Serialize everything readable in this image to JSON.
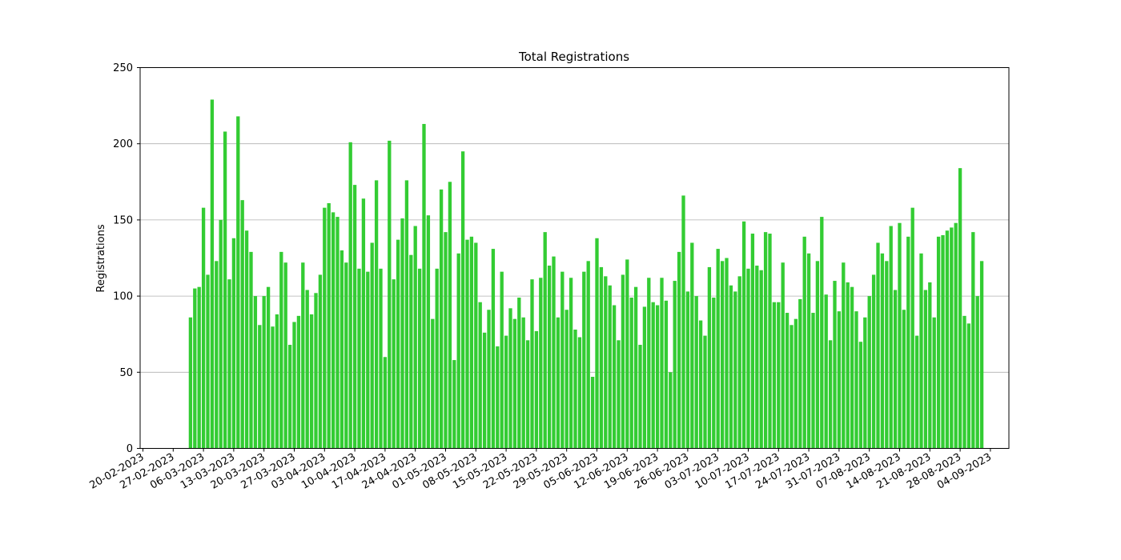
{
  "chart_data": {
    "type": "bar",
    "title": "Total Registrations",
    "xlabel": "",
    "ylabel": "Registrations",
    "ylim": [
      0,
      250
    ],
    "y_ticks": [
      0,
      50,
      100,
      150,
      200,
      250
    ],
    "grid": "y",
    "legend": "none",
    "bar_color": "#33cc33",
    "start_date": "2023-03-03",
    "x_ticks": [
      "20-02-2023",
      "27-02-2023",
      "06-03-2023",
      "13-03-2023",
      "20-03-2023",
      "27-03-2023",
      "03-04-2023",
      "10-04-2023",
      "17-04-2023",
      "24-04-2023",
      "01-05-2023",
      "08-05-2023",
      "15-05-2023",
      "22-05-2023",
      "29-05-2023",
      "05-06-2023",
      "12-06-2023",
      "19-06-2023",
      "26-06-2023",
      "03-07-2023",
      "10-07-2023",
      "17-07-2023",
      "24-07-2023",
      "31-07-2023",
      "07-08-2023",
      "14-08-2023",
      "21-08-2023",
      "28-08-2023",
      "04-09-2023"
    ],
    "values": [
      86,
      105,
      106,
      158,
      114,
      229,
      123,
      150,
      208,
      111,
      138,
      218,
      163,
      143,
      129,
      100,
      81,
      100,
      106,
      80,
      88,
      129,
      122,
      68,
      83,
      87,
      122,
      104,
      88,
      102,
      114,
      158,
      161,
      155,
      152,
      130,
      122,
      201,
      173,
      118,
      164,
      116,
      135,
      176,
      118,
      60,
      202,
      111,
      137,
      151,
      176,
      127,
      146,
      118,
      213,
      153,
      85,
      118,
      170,
      142,
      175,
      58,
      128,
      195,
      137,
      139,
      135,
      96,
      76,
      91,
      131,
      67,
      116,
      74,
      92,
      85,
      99,
      86,
      71,
      111,
      77,
      112,
      142,
      120,
      126,
      86,
      116,
      91,
      112,
      78,
      73,
      116,
      123,
      47,
      138,
      119,
      113,
      107,
      94,
      71,
      114,
      124,
      99,
      106,
      68,
      93,
      112,
      96,
      94,
      112,
      97,
      50,
      110,
      129,
      166,
      103,
      135,
      100,
      84,
      74,
      119,
      99,
      131,
      123,
      125,
      107,
      103,
      113,
      149,
      118,
      141,
      120,
      117,
      142,
      141,
      96,
      96,
      122,
      89,
      81,
      85,
      98,
      139,
      128,
      89,
      123,
      152,
      101,
      71,
      110,
      90,
      122,
      109,
      106,
      90,
      70,
      86,
      100,
      114,
      135,
      128,
      123,
      146,
      104,
      148,
      91,
      139,
      158,
      74,
      128,
      104,
      109,
      86,
      139,
      140,
      143,
      145,
      148,
      184,
      87,
      82,
      142,
      100,
      123
    ]
  }
}
